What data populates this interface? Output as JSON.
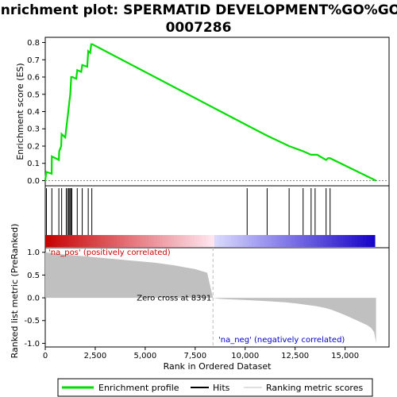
{
  "title_line1": "Enrichment plot: SPERMATID DEVELOPMENT%GO%GO:",
  "title_line2": "0007286",
  "colors": {
    "es_line": "#00dd00",
    "hits": "#000000",
    "metric_fill": "#c0c0c0",
    "zero_cross_line": "#bbbbbb",
    "pos_label": "#cc0000",
    "neg_label": "#0000cc"
  },
  "legend": {
    "enrichment_profile": "Enrichment profile",
    "hits": "Hits",
    "ranking_metric_scores": "Ranking metric scores"
  },
  "chart_data": [
    {
      "type": "line",
      "panel": "enrichment-score",
      "ylabel": "Enrichment score (ES)",
      "xlim": [
        0,
        17200
      ],
      "ylim": [
        -0.03,
        0.83
      ],
      "yticks": [
        "0.0",
        "0.1",
        "0.2",
        "0.3",
        "0.4",
        "0.5",
        "0.6",
        "0.7",
        "0.8"
      ],
      "ytick_values": [
        0.0,
        0.1,
        0.2,
        0.3,
        0.4,
        0.5,
        0.6,
        0.7,
        0.8
      ],
      "series": [
        {
          "x": [
            0,
            50,
            320,
            330,
            680,
            700,
            800,
            820,
            1000,
            1050,
            1100,
            1150,
            1200,
            1250,
            1300,
            1350,
            1550,
            1600,
            1800,
            1850,
            2100,
            2150,
            2250,
            2300,
            2350,
            10100,
            11100,
            12200,
            12900,
            13300,
            13600,
            14050,
            14150,
            14250,
            16550
          ],
          "y": [
            0.0,
            0.05,
            0.04,
            0.14,
            0.12,
            0.17,
            0.2,
            0.27,
            0.25,
            0.3,
            0.35,
            0.4,
            0.45,
            0.5,
            0.6,
            0.6,
            0.59,
            0.64,
            0.63,
            0.67,
            0.66,
            0.75,
            0.74,
            0.79,
            0.79,
            0.32,
            0.26,
            0.2,
            0.17,
            0.15,
            0.15,
            0.12,
            0.13,
            0.13,
            0.0
          ]
        }
      ]
    },
    {
      "type": "scatter",
      "panel": "hits",
      "x": [
        60,
        330,
        680,
        820,
        1050,
        1120,
        1180,
        1230,
        1280,
        1330,
        1600,
        1850,
        2150,
        2330,
        10100,
        11100,
        12200,
        12900,
        13300,
        13500,
        14050,
        14250
      ]
    },
    {
      "type": "area",
      "panel": "ranked-list-metric",
      "xlabel": "Rank in Ordered Dataset",
      "ylabel": "Ranked list metric (PreRanked)",
      "xlim": [
        0,
        17200
      ],
      "ylim": [
        -1.08,
        1.1
      ],
      "xticks": [
        "0",
        "2,500",
        "5,000",
        "7,500",
        "10,000",
        "12,500",
        "15,000"
      ],
      "xtick_values": [
        0,
        2500,
        5000,
        7500,
        10000,
        12500,
        15000
      ],
      "yticks": [
        "1.0",
        "0.5",
        "0.0",
        "-0.5",
        "-1.0"
      ],
      "ytick_values": [
        1.0,
        0.5,
        0.0,
        -0.5,
        -1.0
      ],
      "x": [
        0,
        150,
        500,
        1000,
        1500,
        2000,
        2500,
        3000,
        3500,
        4000,
        4500,
        5000,
        5500,
        6000,
        6500,
        7000,
        7500,
        7800,
        8100,
        8391,
        8700,
        9000,
        10000,
        11000,
        12000,
        12500,
        13000,
        13500,
        14000,
        14300,
        14600,
        15000,
        15400,
        15800,
        16100,
        16300,
        16450,
        16550
      ],
      "values": [
        1.0,
        0.99,
        0.97,
        0.95,
        0.93,
        0.91,
        0.89,
        0.87,
        0.85,
        0.83,
        0.81,
        0.79,
        0.77,
        0.74,
        0.71,
        0.67,
        0.63,
        0.59,
        0.55,
        0.0,
        -0.02,
        -0.03,
        -0.05,
        -0.07,
        -0.1,
        -0.12,
        -0.15,
        -0.18,
        -0.22,
        -0.26,
        -0.31,
        -0.38,
        -0.46,
        -0.54,
        -0.6,
        -0.66,
        -0.75,
        -0.98
      ],
      "zero_cross_label": "Zero cross at 8391",
      "zero_cross": 8391,
      "pos_label": "'na_pos' (positively correlated)",
      "neg_label": "'na_neg' (negatively correlated)"
    }
  ]
}
